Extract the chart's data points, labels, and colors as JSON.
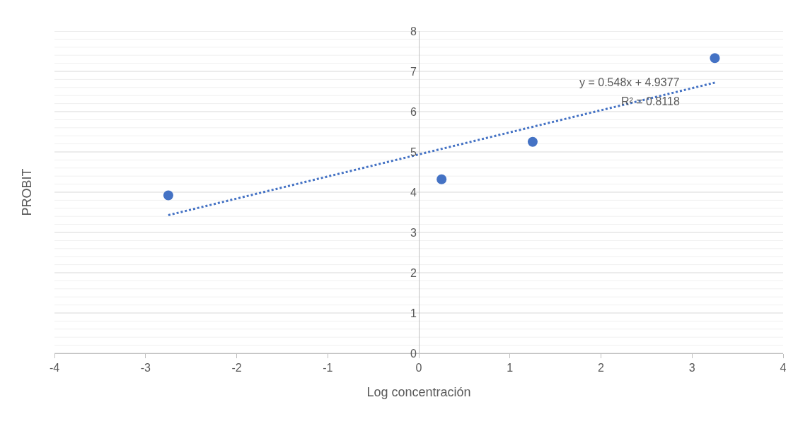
{
  "chart_data": {
    "type": "scatter",
    "xlabel": "Log concentración",
    "ylabel": "PROBIT",
    "series": [
      {
        "color": "#4472c4",
        "x": [
          -2.75,
          0.25,
          1.25,
          3.25
        ],
        "values": [
          3.92,
          4.32,
          5.25,
          7.33
        ],
        "marker": "circle"
      },
      {
        "type": "line",
        "color": "#4472c4",
        "x": [
          -2.75,
          3.25
        ],
        "values": [
          3.43,
          6.72
        ],
        "line_style": "dotted",
        "marker": "none"
      }
    ],
    "annotations": [
      "y = 0.548x + 4.9377",
      "R² = 0.8118"
    ],
    "xlim": [
      -4,
      4
    ],
    "xticks": [
      -4,
      -3,
      -2,
      -1,
      0,
      1,
      2,
      3,
      4
    ],
    "ylim": [
      0,
      8
    ],
    "yticks": [
      0,
      {
        "value": 0.2,
        "label": null
      },
      {
        "value": 0.4,
        "label": null
      },
      {
        "value": 0.6,
        "label": null
      },
      {
        "value": 0.8,
        "label": null
      },
      1,
      {
        "value": 1.2,
        "label": null
      },
      {
        "value": 1.4,
        "label": null
      },
      {
        "value": 1.6,
        "label": null
      },
      {
        "value": 1.8,
        "label": null
      },
      2,
      {
        "value": 2.2,
        "label": null
      },
      {
        "value": 2.4,
        "label": null
      },
      {
        "value": 2.6,
        "label": null
      },
      {
        "value": 2.8,
        "label": null
      },
      3,
      {
        "value": 3.2,
        "label": null
      },
      {
        "value": 3.4,
        "label": null
      },
      {
        "value": 3.6,
        "label": null
      },
      {
        "value": 3.8,
        "label": null
      },
      4,
      {
        "value": 4.2,
        "label": null
      },
      {
        "value": 4.4,
        "label": null
      },
      {
        "value": 4.6,
        "label": null
      },
      {
        "value": 4.8,
        "label": null
      },
      5,
      {
        "value": 5.2,
        "label": null
      },
      {
        "value": 5.4,
        "label": null
      },
      {
        "value": 5.6,
        "label": null
      },
      {
        "value": 5.8,
        "label": null
      },
      6,
      {
        "value": 6.2,
        "label": null
      },
      {
        "value": 6.4,
        "label": null
      },
      {
        "value": 6.6,
        "label": null
      },
      {
        "value": 6.8,
        "label": null
      },
      7,
      {
        "value": 7.2,
        "label": null
      },
      {
        "value": 7.4,
        "label": null
      },
      {
        "value": 7.6,
        "label": null
      },
      {
        "value": 7.8,
        "label": null
      },
      8
    ],
    "grid": "y"
  }
}
